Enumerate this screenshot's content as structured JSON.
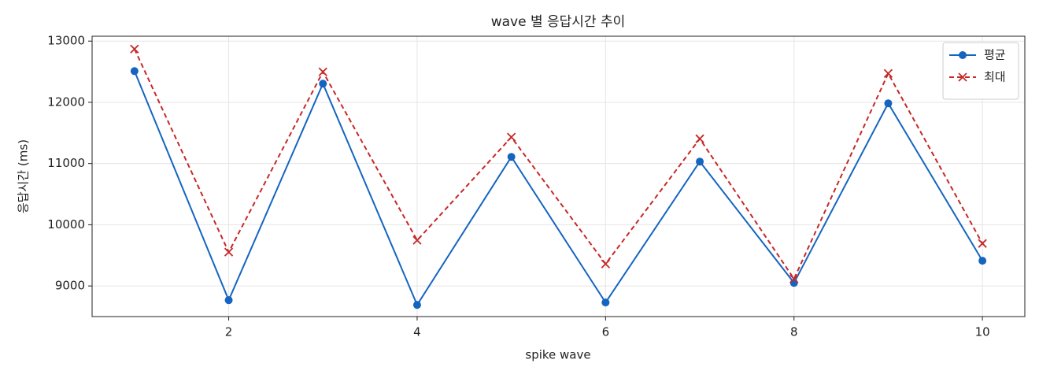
{
  "chart_data": {
    "type": "line",
    "title": "wave 별 응답시간 추이",
    "x_label": "spike wave",
    "y_label": "응답시간 (ms)",
    "x": [
      1,
      2,
      3,
      4,
      5,
      6,
      7,
      8,
      9,
      10
    ],
    "series": [
      {
        "name": "평균",
        "color": "#1565c0",
        "marker": "o",
        "linestyle": "solid",
        "values": [
          12510,
          8768,
          12305,
          8691,
          11109,
          8730,
          11032,
          9051,
          11984,
          9412
        ]
      },
      {
        "name": "최대",
        "color": "#c62828",
        "marker": "x",
        "linestyle": "dashed",
        "values": [
          12871,
          9553,
          12498,
          9746,
          11431,
          9360,
          11405,
          9116,
          12472,
          9694
        ]
      }
    ],
    "xlim": [
      0.55,
      10.45
    ],
    "ylim": [
      8500,
      13080
    ],
    "xticks": [
      2,
      4,
      6,
      8,
      10
    ],
    "yticks": [
      9000,
      10000,
      11000,
      12000,
      13000
    ],
    "grid": true,
    "legend": "upper right"
  }
}
